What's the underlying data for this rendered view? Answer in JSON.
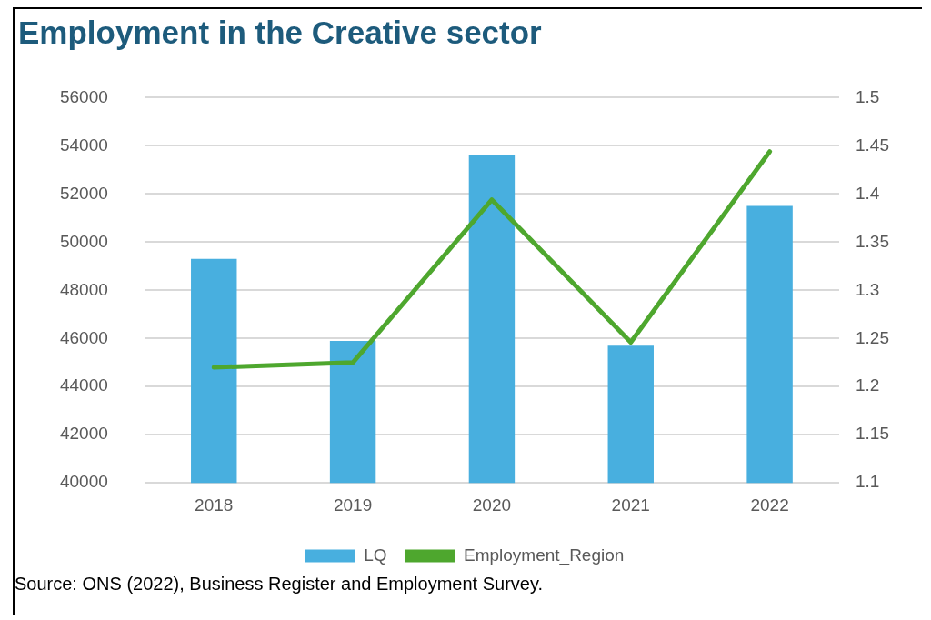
{
  "chart_data": {
    "type": "bar",
    "title": "Employment in the Creative sector",
    "categories": [
      "2018",
      "2019",
      "2020",
      "2021",
      "2022"
    ],
    "series": [
      {
        "name": "LQ",
        "color": "#48afdf",
        "values": [
          49300,
          45900,
          53600,
          45700,
          51500
        ]
      },
      {
        "name": "Employment_Region",
        "type": "line",
        "axis": "y2",
        "color": "#4ea72e",
        "marker": "none",
        "values": [
          1.22,
          1.225,
          1.394,
          1.246,
          1.444
        ]
      }
    ],
    "ylim": [
      40000,
      56000
    ],
    "yticks": [
      40000,
      42000,
      44000,
      46000,
      48000,
      50000,
      52000,
      54000,
      56000
    ],
    "y2lim": [
      1.1,
      1.5
    ],
    "y2ticks": [
      1.1,
      1.15,
      1.2,
      1.25,
      1.3,
      1.35,
      1.4,
      1.45,
      1.5
    ],
    "grid": "y",
    "legend": "bottom",
    "annotations": [
      "Source: ONS (2022), Business Register and Employment Survey."
    ]
  }
}
